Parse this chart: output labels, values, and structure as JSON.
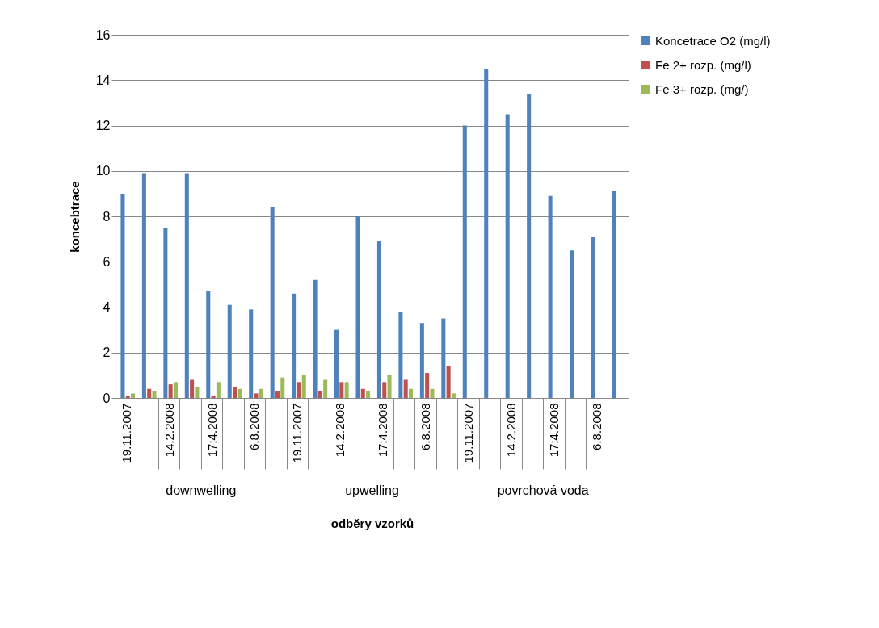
{
  "chart_data": {
    "type": "bar",
    "xlabel": "odběry vzorků",
    "ylabel": "koncebtrace",
    "categories": [
      "19.11.2007",
      null,
      "14.2.2008",
      null,
      "17:4.2008",
      null,
      "6.8.2008",
      null,
      "19.11.2007",
      null,
      "14.2.2008",
      null,
      "17:4.2008",
      null,
      "6.8.2008",
      null,
      "19.11.2007",
      null,
      "14.2.2008",
      null,
      "17:4.2008",
      null,
      "6.8.2008",
      null
    ],
    "series": [
      {
        "name": "Koncetrace O2 (mg/l)",
        "color": "#4f81bd",
        "values": [
          9.0,
          9.9,
          7.5,
          9.9,
          4.7,
          4.1,
          3.9,
          8.4,
          4.6,
          5.2,
          3.0,
          8.0,
          6.9,
          3.8,
          3.3,
          3.5,
          12.0,
          14.5,
          12.5,
          13.4,
          8.9,
          6.5,
          7.1,
          9.1
        ]
      },
      {
        "name": "Fe 2+ rozp. (mg/l)",
        "color": "#c0504d",
        "values": [
          0.1,
          0.4,
          0.6,
          0.8,
          0.1,
          0.5,
          0.2,
          0.3,
          0.7,
          0.3,
          0.7,
          0.4,
          0.7,
          0.8,
          1.1,
          1.4,
          null,
          null,
          null,
          null,
          null,
          null,
          null,
          null
        ]
      },
      {
        "name": "Fe 3+ rozp. (mg/)",
        "color": "#9bbb59",
        "values": [
          0.2,
          0.3,
          0.7,
          0.5,
          0.7,
          0.4,
          0.4,
          0.9,
          1.0,
          0.8,
          0.7,
          0.3,
          1.0,
          0.4,
          0.4,
          0.2,
          null,
          null,
          null,
          null,
          null,
          null,
          null,
          null
        ]
      }
    ],
    "annotations": [
      "downwelling",
      "upwelling",
      "povrchová voda"
    ],
    "ylim": [
      0,
      16
    ],
    "yticks": [
      0,
      2,
      4,
      6,
      8,
      10,
      12,
      14,
      16
    ],
    "grid": "y",
    "legend": "right"
  }
}
